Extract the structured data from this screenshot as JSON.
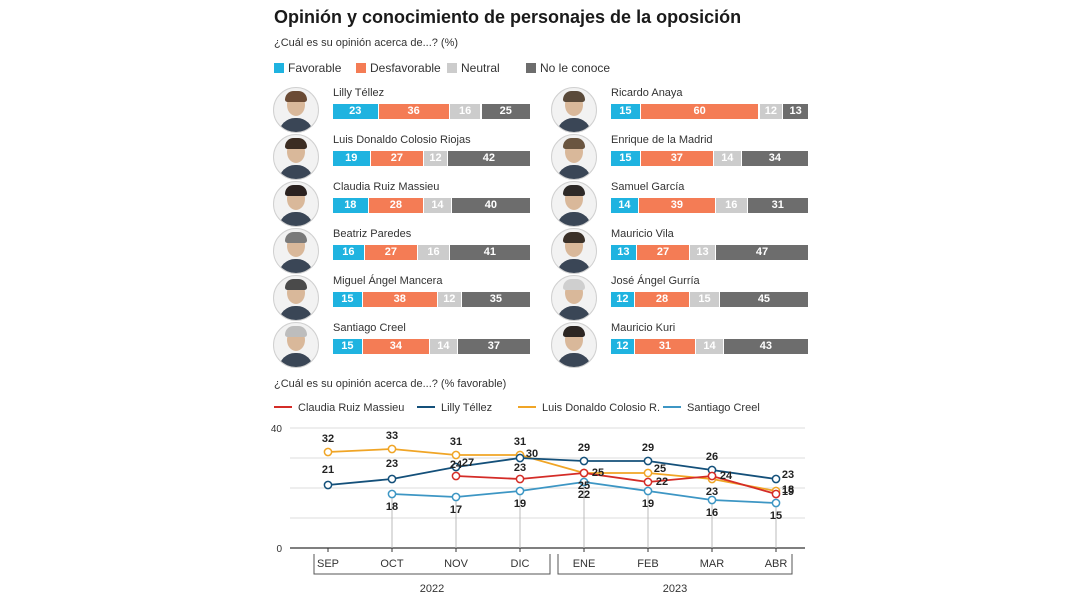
{
  "title": "Opinión y conocimiento de personajes de la oposición",
  "subtitle_bars": "¿Cuál es su opinión acerca de...? (%)",
  "subtitle_lines": "¿Cuál es su opinión acerca de...? (% favorable)",
  "colors": {
    "favorable": "#1fb3e0",
    "desfavorable": "#f47c55",
    "neutral": "#cccccc",
    "no_conoce": "#6d6d6d"
  },
  "chart_data": [
    {
      "type": "bar",
      "stacked": true,
      "title": "¿Cuál es su opinión acerca de...? (%)",
      "legend": [
        "Favorable",
        "Desfavorable",
        "Neutral",
        "No le conoce"
      ],
      "people": [
        {
          "name": "Lilly Téllez",
          "values": [
            23,
            36,
            16,
            25
          ]
        },
        {
          "name": "Luis Donaldo Colosio Riojas",
          "values": [
            19,
            27,
            12,
            42
          ]
        },
        {
          "name": "Claudia Ruiz Massieu",
          "values": [
            18,
            28,
            14,
            40
          ]
        },
        {
          "name": "Beatriz Paredes",
          "values": [
            16,
            27,
            16,
            41
          ]
        },
        {
          "name": "Miguel Ángel Mancera",
          "values": [
            15,
            38,
            12,
            35
          ]
        },
        {
          "name": "Santiago Creel",
          "values": [
            15,
            34,
            14,
            37
          ]
        },
        {
          "name": "Ricardo Anaya",
          "values": [
            15,
            60,
            12,
            13
          ]
        },
        {
          "name": "Enrique de la Madrid",
          "values": [
            15,
            37,
            14,
            34
          ]
        },
        {
          "name": "Samuel García",
          "values": [
            14,
            39,
            16,
            31
          ]
        },
        {
          "name": "Mauricio Vila",
          "values": [
            13,
            27,
            13,
            47
          ]
        },
        {
          "name": "José Ángel Gurría",
          "values": [
            12,
            28,
            15,
            45
          ]
        },
        {
          "name": "Mauricio Kuri",
          "values": [
            12,
            31,
            14,
            43
          ]
        }
      ]
    },
    {
      "type": "line",
      "title": "¿Cuál es su opinión acerca de...? (% favorable)",
      "categories": [
        "SEP",
        "OCT",
        "NOV",
        "DIC",
        "ENE",
        "FEB",
        "MAR",
        "ABR"
      ],
      "years": [
        {
          "label": "2022"
        },
        {
          "label": "2023"
        }
      ],
      "ylim": [
        0,
        40
      ],
      "yticks": [
        "0",
        "40"
      ],
      "series": [
        {
          "name": "Claudia Ruiz Massieu",
          "color": "#d42c27",
          "values": [
            null,
            null,
            24,
            23,
            25,
            22,
            24,
            18
          ]
        },
        {
          "name": "Lilly Téllez",
          "color": "#14507a",
          "values": [
            21,
            23,
            27,
            30,
            29,
            29,
            26,
            23
          ]
        },
        {
          "name": "Luis Donaldo Colosio R.",
          "color": "#f0a526",
          "values": [
            32,
            33,
            31,
            31,
            25,
            25,
            23,
            19
          ]
        },
        {
          "name": "Santiago Creel",
          "color": "#3d96c4",
          "values": [
            null,
            18,
            17,
            19,
            22,
            19,
            16,
            15
          ]
        }
      ]
    }
  ]
}
